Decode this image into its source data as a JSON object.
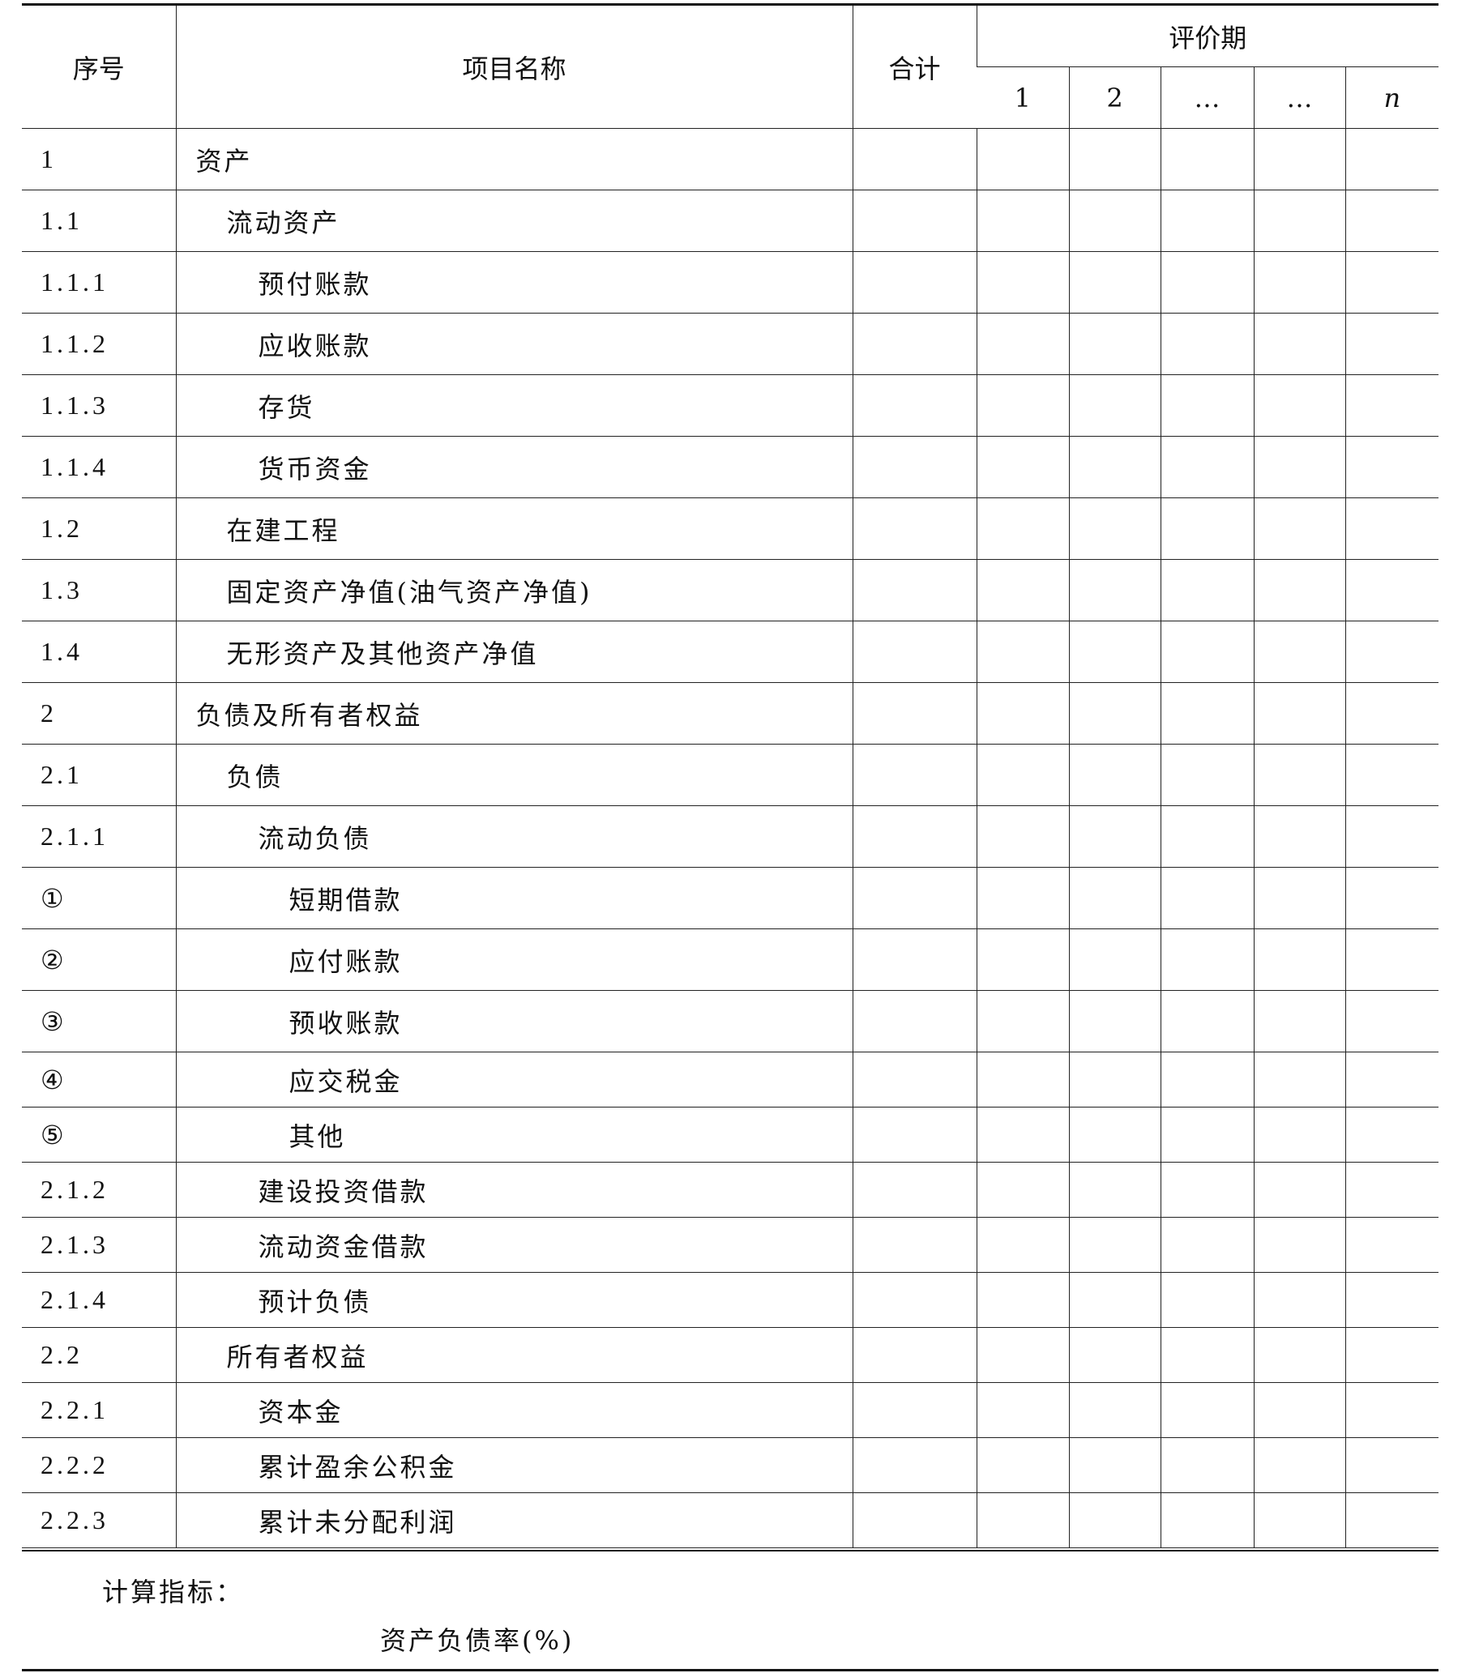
{
  "header": {
    "seq": "序号",
    "name": "项目名称",
    "total": "合计",
    "period": "评价期",
    "periods": [
      "1",
      "2",
      "…",
      "…",
      "n"
    ]
  },
  "rows": [
    {
      "no": "1",
      "name": "资产",
      "level": 0
    },
    {
      "no": "1.1",
      "name": "流动资产",
      "level": 1
    },
    {
      "no": "1.1.1",
      "name": "预付账款",
      "level": 2
    },
    {
      "no": "1.1.2",
      "name": "应收账款",
      "level": 2
    },
    {
      "no": "1.1.3",
      "name": "存货",
      "level": 2
    },
    {
      "no": "1.1.4",
      "name": "货币资金",
      "level": 2
    },
    {
      "no": "1.2",
      "name": "在建工程",
      "level": 1
    },
    {
      "no": "1.3",
      "name": "固定资产净值(油气资产净值)",
      "level": 1
    },
    {
      "no": "1.4",
      "name": "无形资产及其他资产净值",
      "level": 1
    },
    {
      "no": "2",
      "name": "负债及所有者权益",
      "level": 0
    },
    {
      "no": "2.1",
      "name": "负债",
      "level": 1
    },
    {
      "no": "2.1.1",
      "name": "流动负债",
      "level": 2
    },
    {
      "no": "①",
      "name": "短期借款",
      "level": 3
    },
    {
      "no": "②",
      "name": "应付账款",
      "level": 3
    },
    {
      "no": "③",
      "name": "预收账款",
      "level": 3
    },
    {
      "no": "④",
      "name": "应交税金",
      "level": 3
    },
    {
      "no": "⑤",
      "name": "其他",
      "level": 3
    },
    {
      "no": "2.1.2",
      "name": "建设投资借款",
      "level": 2
    },
    {
      "no": "2.1.3",
      "name": "流动资金借款",
      "level": 2
    },
    {
      "no": "2.1.4",
      "name": "预计负债",
      "level": 2
    },
    {
      "no": "2.2",
      "name": "所有者权益",
      "level": 1
    },
    {
      "no": "2.2.1",
      "name": "资本金",
      "level": 2
    },
    {
      "no": "2.2.2",
      "name": "累计盈余公积金",
      "level": 2
    },
    {
      "no": "2.2.3",
      "name": "累计未分配利润",
      "level": 2
    }
  ],
  "footer": {
    "indicators_label": "计算指标：",
    "indicator": "资产负债率(%)"
  }
}
